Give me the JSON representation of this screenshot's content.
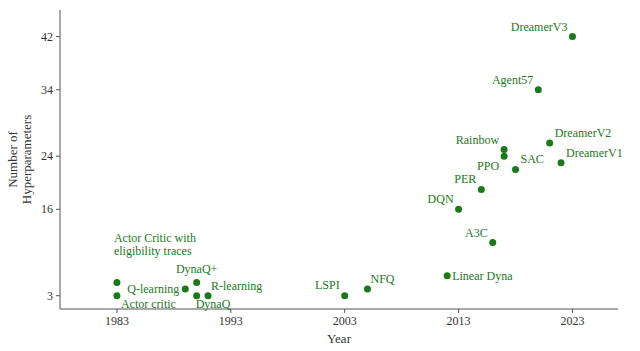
{
  "chart_data": {
    "type": "scatter",
    "x": [
      1983,
      1983,
      1989,
      1990,
      1990,
      1991,
      2003,
      2005,
      2013,
      2012,
      2016,
      2015,
      2017,
      2017,
      2018,
      2020,
      2022,
      2021,
      2023
    ],
    "values": [
      5,
      3,
      4,
      5,
      3,
      3,
      3,
      4,
      16,
      6,
      11,
      19,
      25,
      24,
      22,
      34,
      23,
      26,
      42
    ],
    "annotations": [
      "Actor Critic with\neligibility traces",
      "Actor critic",
      "Q-learning",
      "DynaQ+",
      "DynaQ",
      "R-learning",
      "LSPI",
      "NFQ",
      "DQN",
      "Linear Dyna",
      "A3C",
      "PER",
      "Rainbow",
      "PPO",
      "SAC",
      "Agent57",
      "DreamerV1",
      "DreamerV2",
      "DreamerV3"
    ],
    "color": "#1a7a1a",
    "xlabel": "Year",
    "ylabel": "Number of\nHyperparameters",
    "xlim": [
      1978,
      2027
    ],
    "ylim": [
      1,
      46
    ],
    "xticks": [
      1983,
      1993,
      2003,
      2013,
      2023
    ],
    "yticks": [
      3,
      16,
      24,
      34,
      42
    ]
  }
}
